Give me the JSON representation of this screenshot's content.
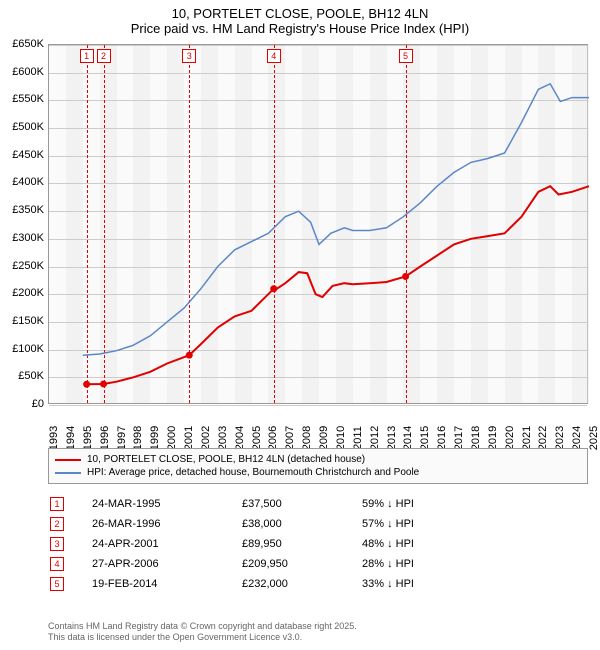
{
  "title_line1": "10, PORTELET CLOSE, POOLE, BH12 4LN",
  "title_line2": "Price paid vs. HM Land Registry's House Price Index (HPI)",
  "chart": {
    "type": "line",
    "background_color": "#fbfafa",
    "border_color": "#999999",
    "grid_color": "#cccccc",
    "x_years": [
      1993,
      1994,
      1995,
      1996,
      1997,
      1998,
      1999,
      2000,
      2001,
      2002,
      2003,
      2004,
      2005,
      2006,
      2007,
      2008,
      2009,
      2010,
      2011,
      2012,
      2013,
      2014,
      2015,
      2016,
      2017,
      2018,
      2019,
      2020,
      2021,
      2022,
      2023,
      2024,
      2025
    ],
    "ylim": [
      0,
      650000
    ],
    "ytick_step": 50000,
    "yticks": [
      "£0",
      "£50K",
      "£100K",
      "£150K",
      "£200K",
      "£250K",
      "£300K",
      "£350K",
      "£400K",
      "£450K",
      "£500K",
      "£550K",
      "£600K",
      "£650K"
    ],
    "alt_band_color": "#eaeaea",
    "vline_color": "#e00000",
    "series_red": {
      "color": "#e00000",
      "width": 2,
      "label": "10, PORTELET CLOSE, POOLE, BH12 4LN (detached house)",
      "points": [
        [
          1995.23,
          37500
        ],
        [
          1996.23,
          38000
        ],
        [
          1997,
          42000
        ],
        [
          1998,
          50000
        ],
        [
          1999,
          60000
        ],
        [
          2000,
          75000
        ],
        [
          2001.31,
          89950
        ],
        [
          2002,
          110000
        ],
        [
          2003,
          140000
        ],
        [
          2004,
          160000
        ],
        [
          2005,
          170000
        ],
        [
          2006.32,
          209950
        ],
        [
          2006.5,
          210000
        ],
        [
          2007,
          220000
        ],
        [
          2007.8,
          240000
        ],
        [
          2008.3,
          238000
        ],
        [
          2008.8,
          200000
        ],
        [
          2009.2,
          195000
        ],
        [
          2009.8,
          215000
        ],
        [
          2010.5,
          220000
        ],
        [
          2011,
          218000
        ],
        [
          2012,
          220000
        ],
        [
          2013,
          222000
        ],
        [
          2014.13,
          232000
        ],
        [
          2015,
          250000
        ],
        [
          2016,
          270000
        ],
        [
          2017,
          290000
        ],
        [
          2018,
          300000
        ],
        [
          2019,
          305000
        ],
        [
          2020,
          310000
        ],
        [
          2021,
          340000
        ],
        [
          2022,
          385000
        ],
        [
          2022.7,
          395000
        ],
        [
          2023.2,
          380000
        ],
        [
          2024,
          385000
        ],
        [
          2025,
          395000
        ]
      ],
      "sale_dots": [
        [
          1995.23,
          37500
        ],
        [
          1996.23,
          38000
        ],
        [
          2001.31,
          89950
        ],
        [
          2006.32,
          209950
        ],
        [
          2014.13,
          232000
        ]
      ]
    },
    "series_blue": {
      "color": "#5b87c7",
      "width": 1.5,
      "label": "HPI: Average price, detached house, Bournemouth Christchurch and Poole",
      "points": [
        [
          1995,
          90000
        ],
        [
          1996,
          92000
        ],
        [
          1997,
          98000
        ],
        [
          1998,
          108000
        ],
        [
          1999,
          125000
        ],
        [
          2000,
          150000
        ],
        [
          2001,
          175000
        ],
        [
          2002,
          210000
        ],
        [
          2003,
          250000
        ],
        [
          2004,
          280000
        ],
        [
          2005,
          295000
        ],
        [
          2006,
          310000
        ],
        [
          2007,
          340000
        ],
        [
          2007.8,
          350000
        ],
        [
          2008.5,
          330000
        ],
        [
          2009,
          290000
        ],
        [
          2009.7,
          310000
        ],
        [
          2010.5,
          320000
        ],
        [
          2011,
          315000
        ],
        [
          2012,
          315000
        ],
        [
          2013,
          320000
        ],
        [
          2014,
          340000
        ],
        [
          2015,
          365000
        ],
        [
          2016,
          395000
        ],
        [
          2017,
          420000
        ],
        [
          2018,
          438000
        ],
        [
          2019,
          445000
        ],
        [
          2020,
          455000
        ],
        [
          2021,
          510000
        ],
        [
          2022,
          570000
        ],
        [
          2022.7,
          580000
        ],
        [
          2023.3,
          548000
        ],
        [
          2024,
          555000
        ],
        [
          2025,
          555000
        ]
      ]
    },
    "markers": [
      {
        "n": "1",
        "x": 1995.23
      },
      {
        "n": "2",
        "x": 1996.23
      },
      {
        "n": "3",
        "x": 2001.31
      },
      {
        "n": "4",
        "x": 2006.32
      },
      {
        "n": "5",
        "x": 2014.13
      }
    ]
  },
  "transactions": [
    {
      "n": "1",
      "date": "24-MAR-1995",
      "price": "£37,500",
      "pct": "59% ↓ HPI"
    },
    {
      "n": "2",
      "date": "26-MAR-1996",
      "price": "£38,000",
      "pct": "57% ↓ HPI"
    },
    {
      "n": "3",
      "date": "24-APR-2001",
      "price": "£89,950",
      "pct": "48% ↓ HPI"
    },
    {
      "n": "4",
      "date": "27-APR-2006",
      "price": "£209,950",
      "pct": "28% ↓ HPI"
    },
    {
      "n": "5",
      "date": "19-FEB-2014",
      "price": "£232,000",
      "pct": "33% ↓ HPI"
    }
  ],
  "footer_line1": "Contains HM Land Registry data © Crown copyright and database right 2025.",
  "footer_line2": "This data is licensed under the Open Government Licence v3.0."
}
